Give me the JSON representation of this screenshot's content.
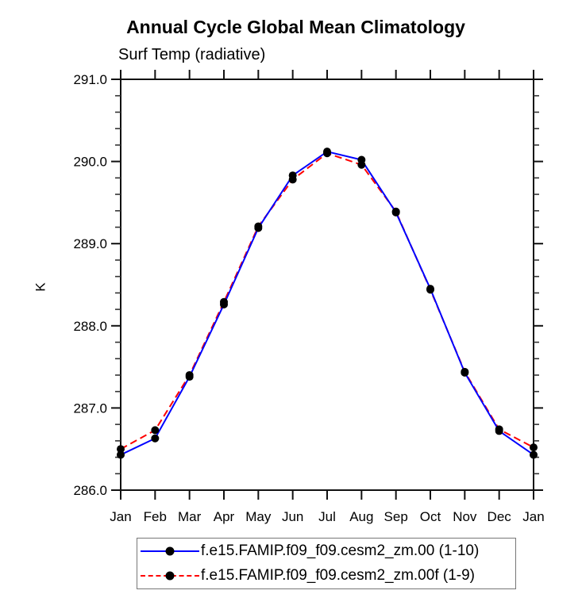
{
  "page": {
    "background": "#ffffff"
  },
  "chart_data": {
    "type": "line",
    "title": "Annual Cycle Global Mean Climatology",
    "subtitle": "Surf Temp (radiative)",
    "ylabel": "K",
    "xlabel": "",
    "categories": [
      "Jan",
      "Feb",
      "Mar",
      "Apr",
      "May",
      "Jun",
      "Jul",
      "Aug",
      "Sep",
      "Oct",
      "Nov",
      "Dec",
      "Jan"
    ],
    "ylim": [
      286.0,
      291.0
    ],
    "ytick_major_step": 1.0,
    "ytick_minor_step": 0.2,
    "ytick_labels": [
      "286.0",
      "287.0",
      "288.0",
      "289.0",
      "290.0",
      "291.0"
    ],
    "grid": false,
    "legend_position": "bottom",
    "marker": "filled-circle",
    "marker_color": "#000000",
    "axis_color": "#111111",
    "series": [
      {
        "name": "f.e15.FAMIP.f09_f09.cesm2_zm.00 (1-10)",
        "color": "#0000ff",
        "style": "solid",
        "values": [
          286.43,
          286.63,
          287.38,
          288.26,
          289.19,
          289.83,
          290.12,
          290.02,
          289.38,
          288.45,
          287.43,
          286.72,
          286.43
        ]
      },
      {
        "name": "f.e15.FAMIP.f09_f09.cesm2_zm.00f (1-9)",
        "color": "#ff0000",
        "style": "dashed",
        "values": [
          286.5,
          286.73,
          287.4,
          288.29,
          289.21,
          289.78,
          290.1,
          289.96,
          289.39,
          288.44,
          287.44,
          286.74,
          286.52
        ]
      }
    ]
  }
}
